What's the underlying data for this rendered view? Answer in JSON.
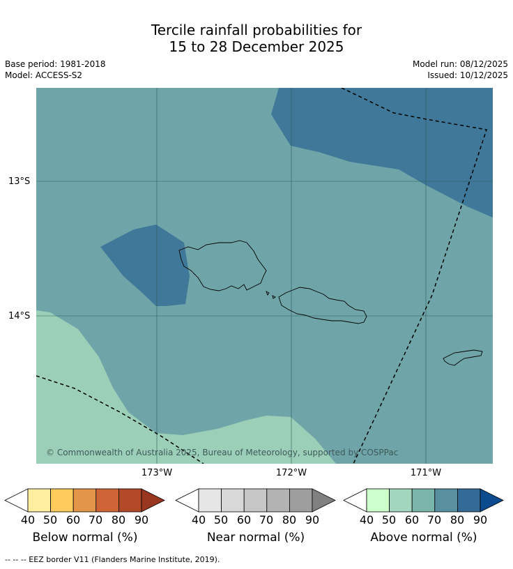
{
  "title_line1": "Tercile rainfall probabilities for",
  "title_line2": "15 to 28 December 2025",
  "base_period": "Base period: 1981-2018",
  "model": "Model: ACCESS-S2",
  "model_run": "Model run: 08/12/2025",
  "issued": "Issued: 10/12/2025",
  "map": {
    "lat_labels": [
      "13°S",
      "14°S"
    ],
    "lon_labels": [
      "173°W",
      "172°W",
      "171°W"
    ],
    "copyright": "© Commonwealth of Australia 2025, Bureau of Meteorology, supported by COSPPac",
    "colors": {
      "above_60_70": "#6fa5a8",
      "above_70_80": "#3f7899",
      "above_50_60": "#9ccfb8"
    }
  },
  "legends": [
    {
      "label": "Below normal (%)",
      "ticks": [
        "40",
        "50",
        "60",
        "70",
        "80",
        "90"
      ],
      "colors": [
        "#ffffff",
        "#ffeda0",
        "#fecc5c",
        "#e3954a",
        "#cf6536",
        "#b24a2a",
        "#993620"
      ]
    },
    {
      "label": "Near normal (%)",
      "ticks": [
        "40",
        "50",
        "60",
        "70",
        "80",
        "90"
      ],
      "colors": [
        "#ffffff",
        "#e6e6e6",
        "#d8d8d8",
        "#c6c6c6",
        "#b3b3b3",
        "#9e9e9e",
        "#808080"
      ]
    },
    {
      "label": "Above normal (%)",
      "ticks": [
        "40",
        "50",
        "60",
        "70",
        "80",
        "90"
      ],
      "colors": [
        "#ffffff",
        "#ccffcc",
        "#a2d6bf",
        "#7ab5aa",
        "#5890a0",
        "#336a96",
        "#0c4b8e"
      ]
    }
  ],
  "footnote": "-- -- -- EEZ border V11 (Flanders Marine Institute, 2019)."
}
